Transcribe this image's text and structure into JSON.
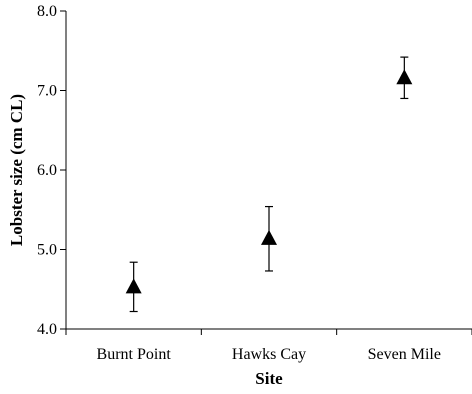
{
  "chart_data": {
    "type": "scatter",
    "title": "",
    "xlabel": "Site",
    "ylabel": "Lobster size (cm CL)",
    "categories": [
      "Burnt Point",
      "Hawks Cay",
      "Seven Mile"
    ],
    "series": [
      {
        "marker": "triangle",
        "values": [
          4.52,
          5.13,
          7.15
        ],
        "error_upper": [
          4.84,
          5.54,
          7.42
        ],
        "error_lower": [
          4.22,
          4.73,
          6.9
        ]
      }
    ],
    "ylim": [
      4.0,
      8.0
    ],
    "yticks": [
      "4.0",
      "5.0",
      "6.0",
      "7.0",
      "8.0"
    ],
    "grid": false,
    "legend": false,
    "colors": {
      "marker": "#000000",
      "axis": "#000000"
    }
  }
}
